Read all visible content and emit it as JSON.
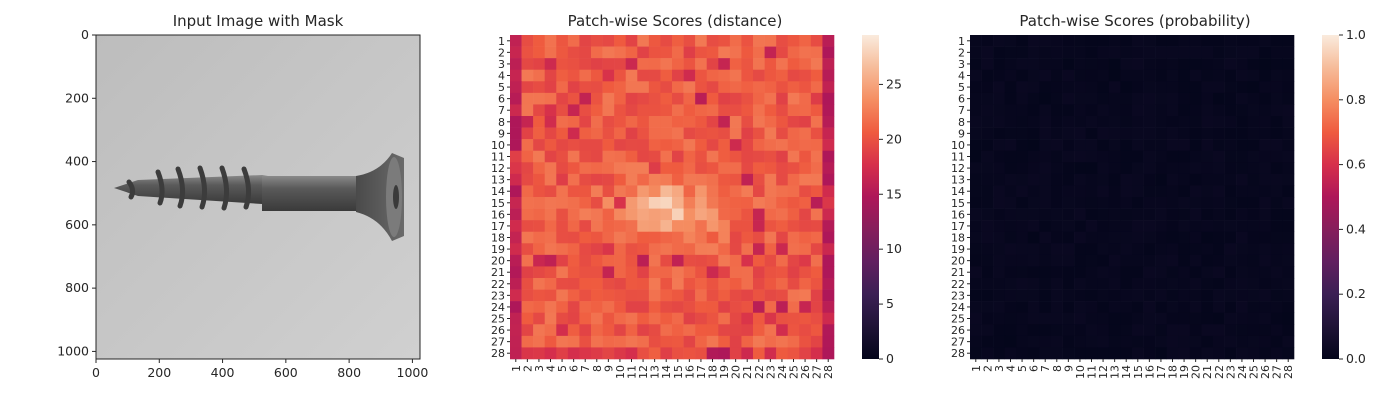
{
  "chart_data": [
    {
      "type": "image",
      "title": "Input Image with Mask",
      "xlim": [
        0,
        1024
      ],
      "ylim": [
        1024,
        0
      ],
      "x_ticks": [
        0,
        200,
        400,
        600,
        800,
        1000
      ],
      "y_ticks": [
        0,
        200,
        400,
        600,
        800,
        1000
      ],
      "x_tick_labels": [
        "0",
        "200",
        "400",
        "600",
        "800",
        "1000"
      ],
      "y_tick_labels": [
        "0",
        "200",
        "400",
        "600",
        "800",
        "1000"
      ],
      "content": "grayscale photo of a screw on light gray background"
    },
    {
      "type": "heatmap",
      "title": "Patch-wise Scores (distance)",
      "rows": [
        "1",
        "2",
        "3",
        "4",
        "5",
        "6",
        "7",
        "8",
        "9",
        "10",
        "11",
        "12",
        "13",
        "14",
        "15",
        "16",
        "17",
        "18",
        "19",
        "20",
        "21",
        "22",
        "23",
        "24",
        "25",
        "26",
        "27",
        "28"
      ],
      "cols": [
        "1",
        "2",
        "3",
        "4",
        "5",
        "6",
        "7",
        "8",
        "9",
        "10",
        "11",
        "12",
        "13",
        "14",
        "15",
        "16",
        "17",
        "18",
        "19",
        "20",
        "21",
        "22",
        "23",
        "24",
        "25",
        "26",
        "27",
        "28"
      ],
      "colorbar": {
        "min": 0,
        "max": 29.5,
        "ticks": [
          0,
          5,
          10,
          15,
          20,
          25
        ],
        "tick_labels": [
          "0",
          "5",
          "10",
          "15",
          "20",
          "25"
        ],
        "colormap": "rocket"
      },
      "value_range_estimate": [
        12,
        28
      ]
    },
    {
      "type": "heatmap",
      "title": "Patch-wise Scores (probability)",
      "rows": [
        "1",
        "2",
        "3",
        "4",
        "5",
        "6",
        "7",
        "8",
        "9",
        "10",
        "11",
        "12",
        "13",
        "14",
        "15",
        "16",
        "17",
        "18",
        "19",
        "20",
        "21",
        "22",
        "23",
        "24",
        "25",
        "26",
        "27",
        "28"
      ],
      "cols": [
        "1",
        "2",
        "3",
        "4",
        "5",
        "6",
        "7",
        "8",
        "9",
        "10",
        "11",
        "12",
        "13",
        "14",
        "15",
        "16",
        "17",
        "18",
        "19",
        "20",
        "21",
        "22",
        "23",
        "24",
        "25",
        "26",
        "27",
        "28"
      ],
      "colorbar": {
        "min": 0,
        "max": 1,
        "ticks": [
          0,
          0.2,
          0.4,
          0.6,
          0.8,
          1.0
        ],
        "tick_labels": [
          "0.0",
          "0.2",
          "0.4",
          "0.6",
          "0.8",
          "1.0"
        ],
        "colormap": "rocket"
      },
      "value_range_estimate": [
        0,
        0.03
      ]
    }
  ]
}
